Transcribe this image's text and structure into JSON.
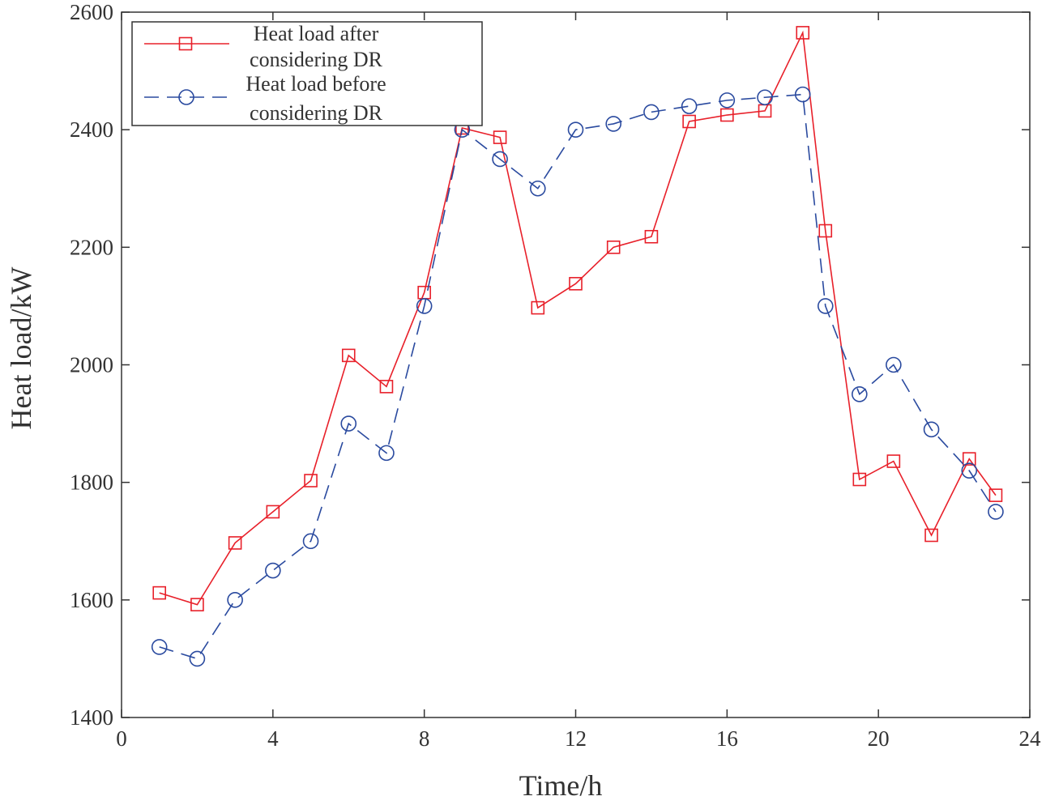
{
  "chart_data": {
    "type": "line",
    "title": "",
    "xlabel": "Time/h",
    "ylabel": "Heat load/kW",
    "xlim": [
      0,
      24
    ],
    "ylim": [
      1400,
      2600
    ],
    "xticks": [
      0,
      4,
      8,
      12,
      16,
      20,
      24
    ],
    "yticks": [
      1400,
      1600,
      1800,
      2000,
      2200,
      2400,
      2600
    ],
    "grid": false,
    "legend_position": "top-left",
    "series": [
      {
        "name": "Heat load after considering DR",
        "legend_lines": [
          "Heat load after",
          "considering DR"
        ],
        "color": "#e8202a",
        "marker": "square",
        "linestyle": "solid",
        "x": [
          1,
          2,
          3,
          4,
          5,
          6,
          7,
          8,
          9,
          10,
          11,
          12,
          13,
          14,
          15,
          16,
          17,
          18,
          18.6,
          19.5,
          20.4,
          21.4,
          22.4,
          23.1
        ],
        "values": [
          1612,
          1592,
          1697,
          1750,
          1803,
          2016,
          1963,
          2123,
          2403,
          2387,
          2097,
          2138,
          2200,
          2218,
          2414,
          2425,
          2432,
          2565,
          2228,
          1805,
          1836,
          1710,
          1840,
          1778
        ]
      },
      {
        "name": "Heat load before considering DR",
        "legend_lines": [
          "Heat load before",
          "considering DR"
        ],
        "color": "#2a4a9f",
        "marker": "circle",
        "linestyle": "dashed",
        "x": [
          1,
          2,
          3,
          4,
          5,
          6,
          7,
          8,
          9,
          10,
          11,
          12,
          13,
          14,
          15,
          16,
          17,
          18,
          18.6,
          19.5,
          20.4,
          21.4,
          22.4,
          23.1
        ],
        "values": [
          1520,
          1500,
          1600,
          1650,
          1700,
          1900,
          1850,
          2100,
          2400,
          2350,
          2300,
          2400,
          2410,
          2430,
          2440,
          2450,
          2455,
          2460,
          2100,
          1950,
          2000,
          1890,
          1820,
          1750
        ]
      }
    ]
  }
}
